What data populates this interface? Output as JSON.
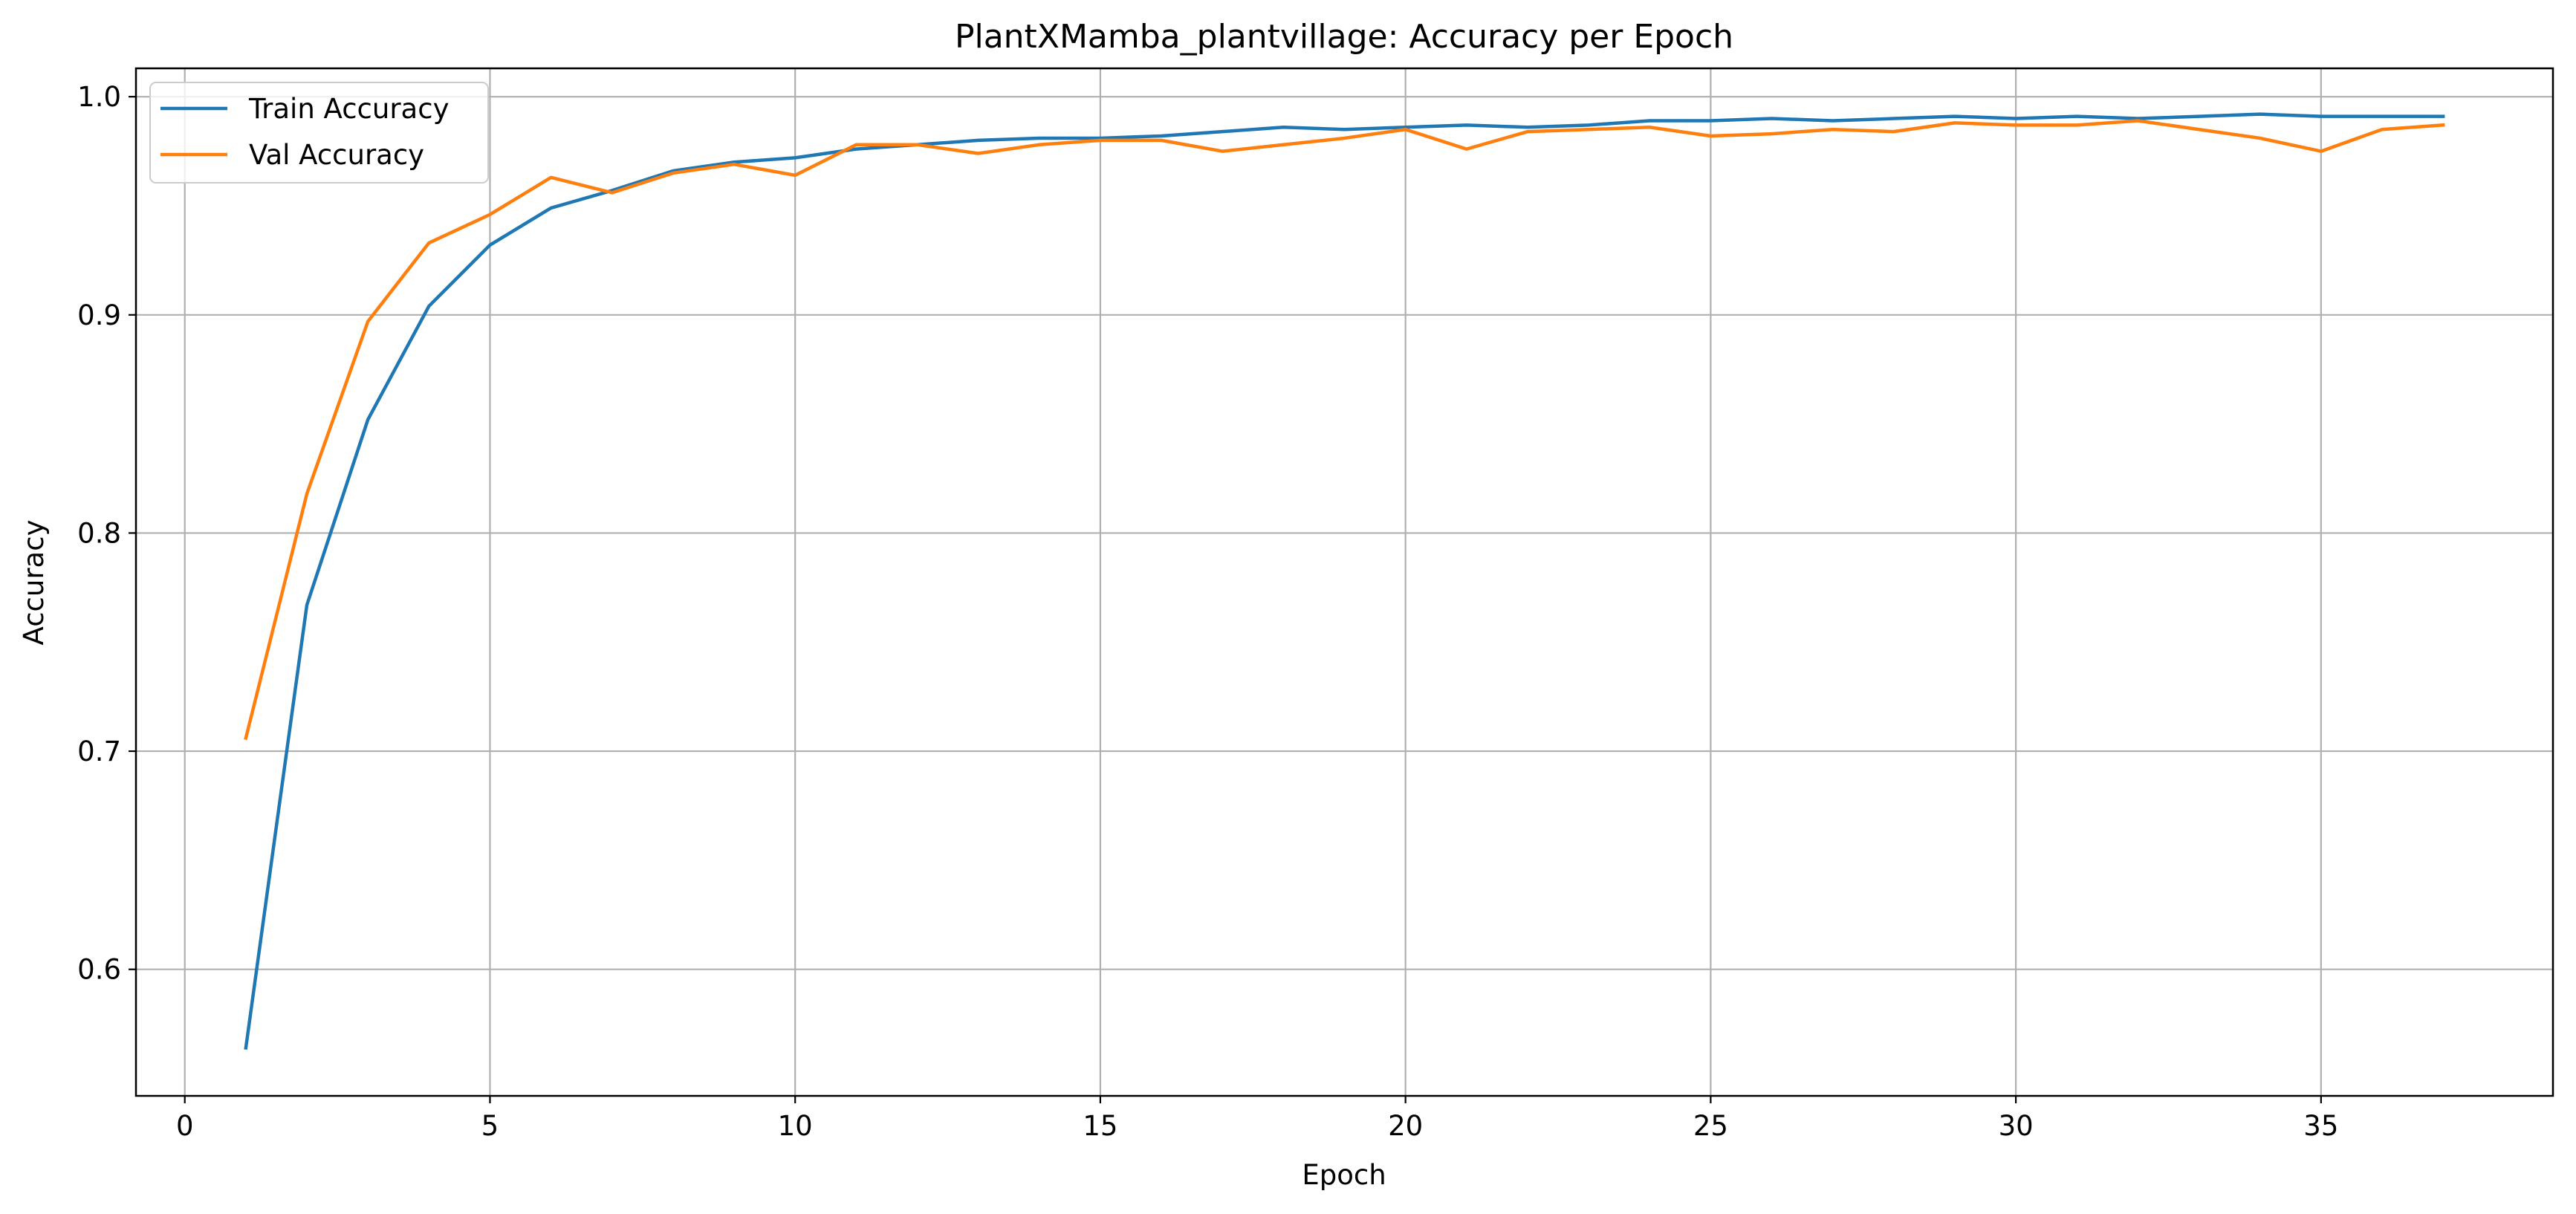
{
  "chart_data": {
    "type": "line",
    "title": "PlantXMamba_plantvillage: Accuracy per Epoch",
    "xlabel": "Epoch",
    "ylabel": "Accuracy",
    "xlim": [
      -0.8,
      38.8
    ],
    "ylim": [
      0.542,
      1.013
    ],
    "xticks": [
      0,
      5,
      10,
      15,
      20,
      25,
      30,
      35
    ],
    "xtick_labels": [
      "0",
      "5",
      "10",
      "15",
      "20",
      "25",
      "30",
      "35"
    ],
    "yticks": [
      0.6,
      0.7,
      0.8,
      0.9,
      1.0
    ],
    "ytick_labels": [
      "0.6",
      "0.7",
      "0.8",
      "0.9",
      "1.0"
    ],
    "grid": true,
    "legend": "upper-left",
    "x": [
      1,
      2,
      3,
      4,
      5,
      6,
      7,
      8,
      9,
      10,
      11,
      12,
      13,
      14,
      15,
      16,
      17,
      18,
      19,
      20,
      21,
      22,
      23,
      24,
      25,
      26,
      27,
      28,
      29,
      30,
      31,
      32,
      33,
      34,
      35,
      36,
      37
    ],
    "series": [
      {
        "name": "Train Accuracy",
        "color": "#1f77b4",
        "values": [
          0.564,
          0.767,
          0.852,
          0.904,
          0.932,
          0.949,
          0.957,
          0.966,
          0.97,
          0.972,
          0.976,
          0.978,
          0.98,
          0.981,
          0.981,
          0.982,
          0.984,
          0.986,
          0.985,
          0.986,
          0.987,
          0.986,
          0.987,
          0.989,
          0.989,
          0.99,
          0.989,
          0.99,
          0.991,
          0.99,
          0.991,
          0.99,
          0.991,
          0.992,
          0.991,
          0.991,
          0.991
        ]
      },
      {
        "name": "Val Accuracy",
        "color": "#ff7f0e",
        "values": [
          0.706,
          0.818,
          0.897,
          0.933,
          0.946,
          0.963,
          0.956,
          0.965,
          0.969,
          0.964,
          0.978,
          0.978,
          0.974,
          0.978,
          0.98,
          0.98,
          0.975,
          0.978,
          0.981,
          0.985,
          0.976,
          0.984,
          0.985,
          0.986,
          0.982,
          0.983,
          0.985,
          0.984,
          0.988,
          0.987,
          0.987,
          0.989,
          0.985,
          0.981,
          0.975,
          0.985,
          0.987
        ]
      }
    ]
  }
}
